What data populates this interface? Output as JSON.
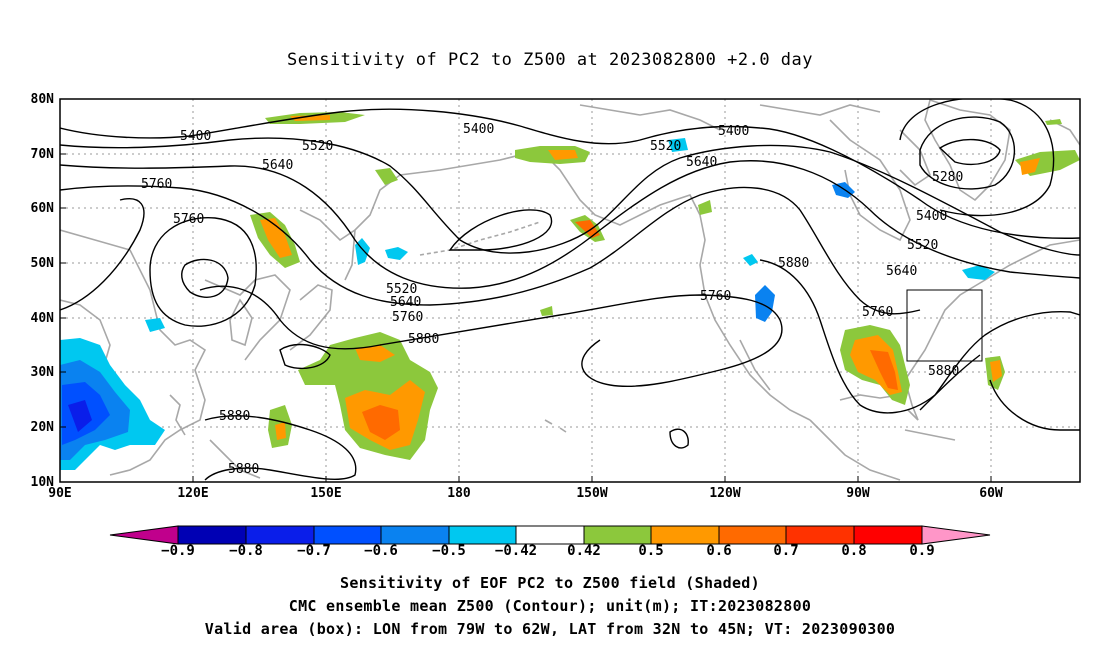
{
  "title": "Sensitivity of PC2 to Z500 at 2023082800 +2.0 day",
  "lat_labels": [
    "80N",
    "70N",
    "60N",
    "50N",
    "40N",
    "30N",
    "20N",
    "10N"
  ],
  "lon_labels": [
    "90E",
    "120E",
    "150E",
    "180",
    "150W",
    "120W",
    "90W",
    "60W"
  ],
  "contour_labels": [
    "5280",
    "5400",
    "5400",
    "5400",
    "5400",
    "5520",
    "5520",
    "5520",
    "5520",
    "5640",
    "5640",
    "5640",
    "5640",
    "5760",
    "5760",
    "5760",
    "5760",
    "5760",
    "5880",
    "5880",
    "5880",
    "5880",
    "5880"
  ],
  "colorbar": {
    "labels": [
      "−0.9",
      "−0.8",
      "−0.7",
      "−0.6",
      "−0.5",
      "−0.42",
      "0.42",
      "0.5",
      "0.6",
      "0.7",
      "0.8",
      "0.9"
    ],
    "colors": [
      "#c0008c",
      "#0000b4",
      "#0a1eea",
      "#0050ff",
      "#0a82f0",
      "#00c8f0",
      "#ffffff",
      "#8cc83c",
      "#ff9900",
      "#ff6a00",
      "#ff3200",
      "#ff0000",
      "#ff96c8"
    ]
  },
  "captions": [
    "Sensitivity of EOF PC2 to Z500 field (Shaded)",
    "CMC ensemble mean Z500 (Contour); unit(m); IT:2023082800",
    "Valid area (box): LON from 79W to 62W, LAT from 32N to 45N; VT: 2023090300"
  ],
  "valid_box": {
    "lon_west": "79W",
    "lon_east": "62W",
    "lat_south": "32N",
    "lat_north": "45N"
  }
}
